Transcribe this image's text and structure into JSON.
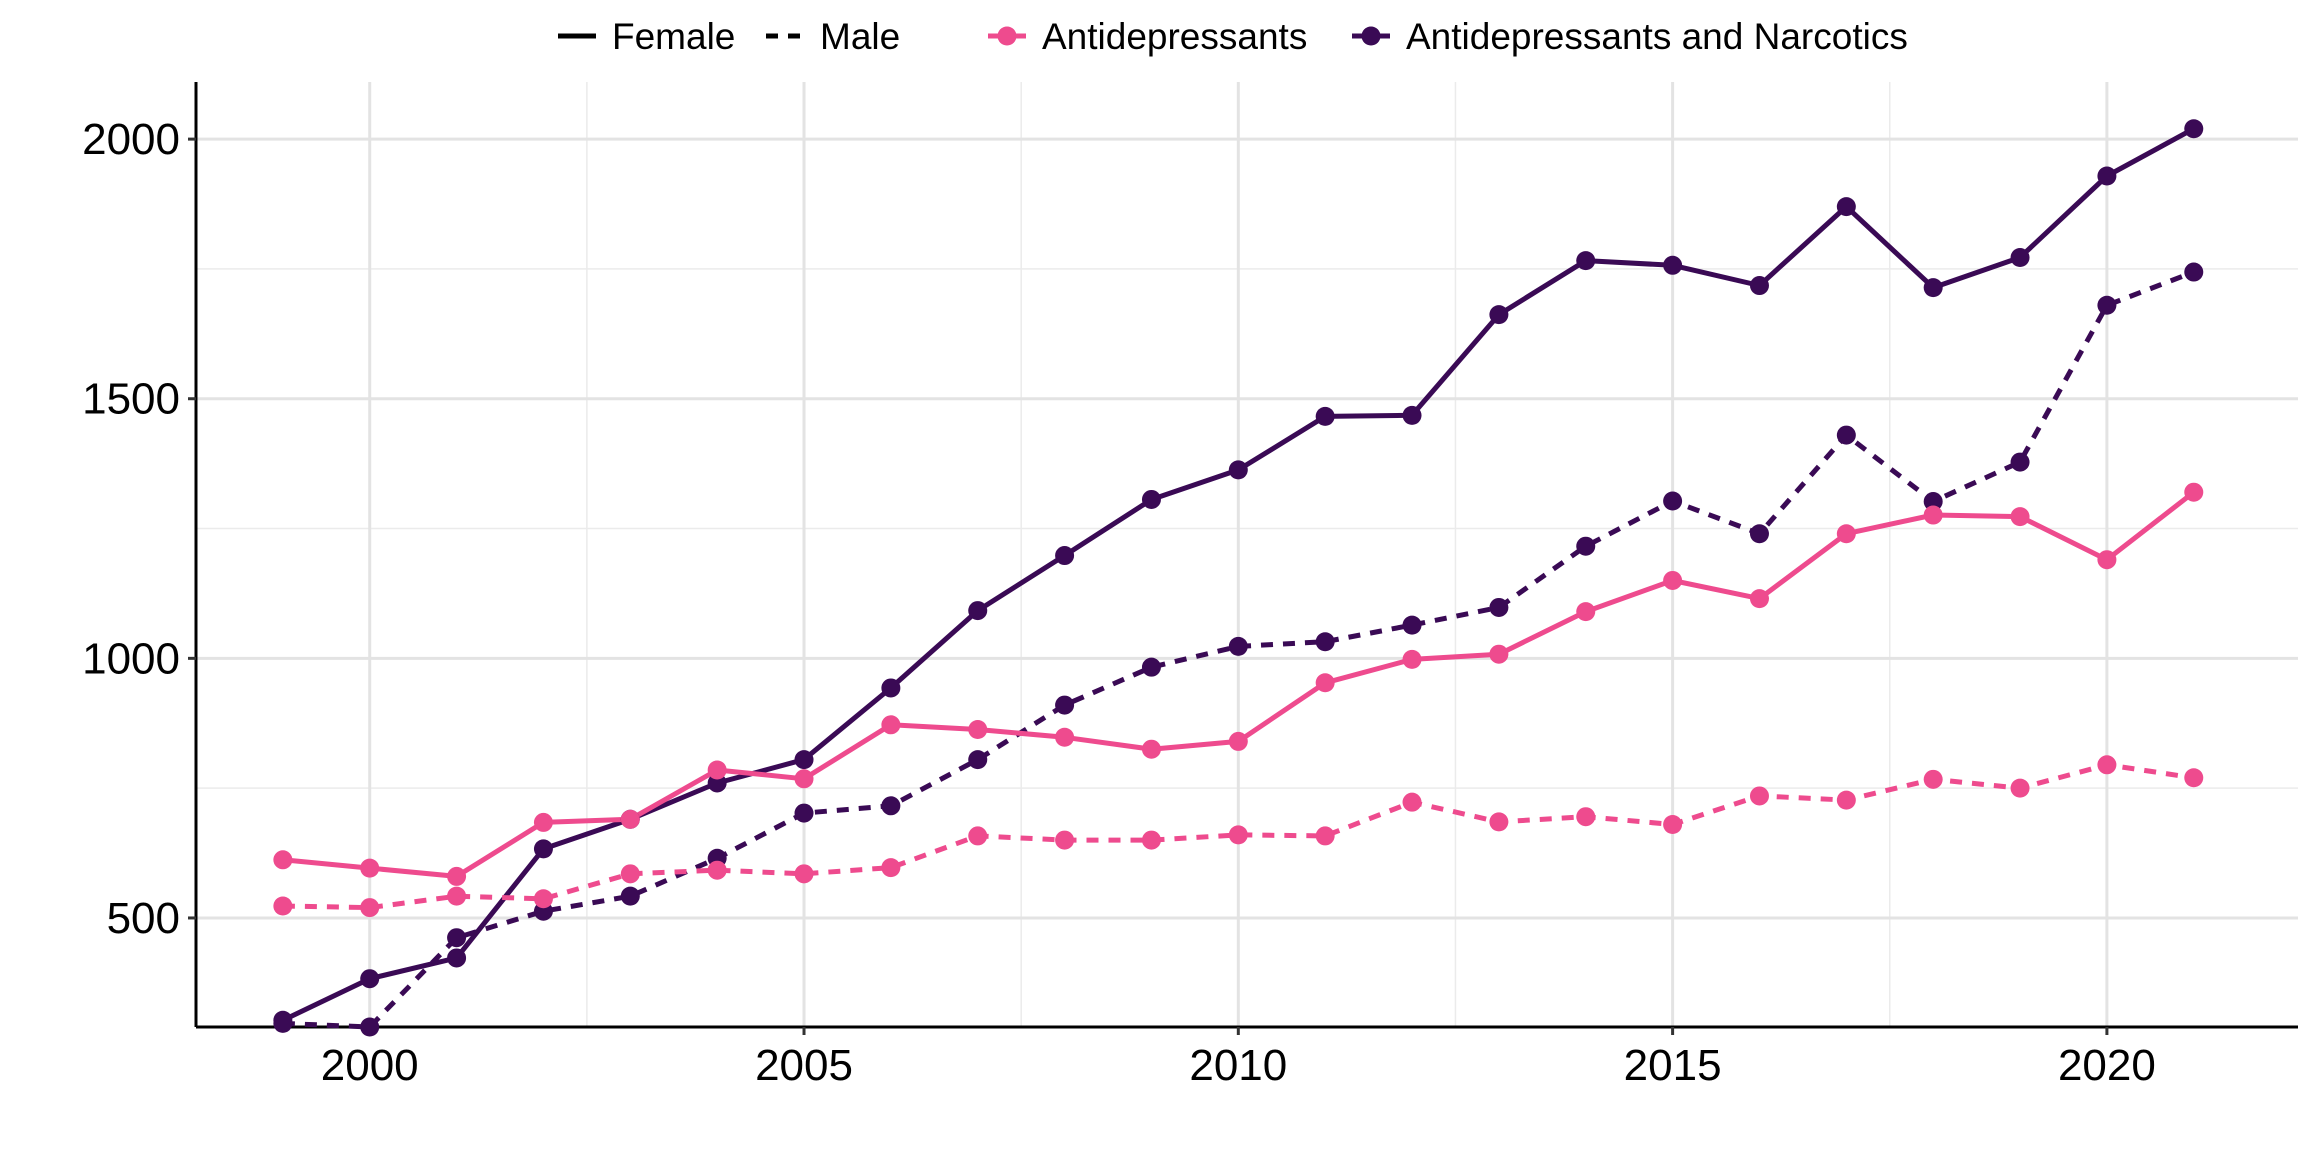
{
  "chart_data": {
    "type": "line",
    "title": "",
    "xlabel": "",
    "ylabel": "",
    "xlim": [
      1998,
      2022.2
    ],
    "ylim": [
      290,
      2110
    ],
    "x_ticks": [
      2000,
      2005,
      2010,
      2015,
      2020
    ],
    "y_ticks": [
      500,
      1000,
      1500,
      2000
    ],
    "grid": true,
    "legend_placement": "top",
    "legend": {
      "linetype_entries": [
        {
          "label": "Female",
          "dash": "solid"
        },
        {
          "label": "Male",
          "dash": "dashed"
        }
      ],
      "color_entries": [
        {
          "label": "Antidepressants",
          "color": "#EE4B8E"
        },
        {
          "label": "Antidepressants and Narcotics",
          "color": "#3A0A55"
        }
      ]
    },
    "x": [
      1999,
      2000,
      2001,
      2002,
      2003,
      2004,
      2005,
      2006,
      2007,
      2008,
      2009,
      2010,
      2011,
      2012,
      2013,
      2014,
      2015,
      2016,
      2017,
      2018,
      2019,
      2020,
      2021
    ],
    "series": [
      {
        "drug": "Antidepressants and Narcotics",
        "sex": "Female",
        "color": "#3A0A55",
        "dash": "solid",
        "values": [
          303,
          383,
          423,
          633,
          690,
          760,
          805,
          943,
          1092,
          1198,
          1306,
          1363,
          1466,
          1468,
          1662,
          1766,
          1757,
          1718,
          1870,
          1714,
          1772,
          1929,
          2020
        ]
      },
      {
        "drug": "Antidepressants and Narcotics",
        "sex": "Male",
        "color": "#3A0A55",
        "dash": "dashed",
        "values": [
          297,
          290,
          462,
          513,
          542,
          615,
          702,
          716,
          805,
          910,
          983,
          1023,
          1032,
          1064,
          1098,
          1216,
          1303,
          1240,
          1430,
          1302,
          1378,
          1680,
          1744
        ]
      },
      {
        "drug": "Antidepressants",
        "sex": "Female",
        "color": "#EE4B8E",
        "dash": "solid",
        "values": [
          612,
          596,
          580,
          684,
          690,
          785,
          768,
          872,
          863,
          848,
          825,
          840,
          953,
          998,
          1008,
          1090,
          1150,
          1115,
          1240,
          1276,
          1273,
          1190,
          1320
        ]
      },
      {
        "drug": "Antidepressants",
        "sex": "Male",
        "color": "#EE4B8E",
        "dash": "dashed",
        "values": [
          523,
          520,
          542,
          537,
          585,
          592,
          585,
          597,
          658,
          650,
          650,
          660,
          658,
          723,
          685,
          695,
          680,
          735,
          727,
          767,
          750,
          795,
          770
        ]
      }
    ]
  }
}
